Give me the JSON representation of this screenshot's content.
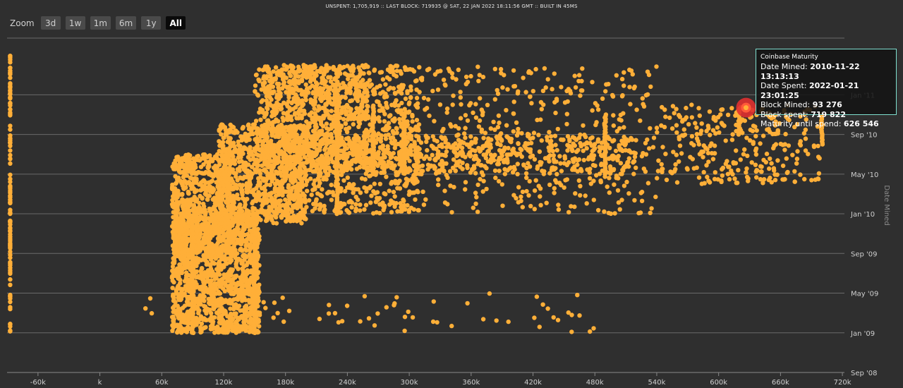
{
  "status_bar": "UNSPENT: 1,705,919 :: LAST BLOCK: 719935 @ SAT, 22 JAN 2022 18:11:56 GMT :: BUILT IN 45MS",
  "zoom": {
    "label": "Zoom",
    "buttons": [
      "3d",
      "1w",
      "1m",
      "6m",
      "1y",
      "All"
    ],
    "active": "All"
  },
  "tooltip": {
    "title": "Coinbase Maturity",
    "rows": [
      {
        "label": "Date Mined:",
        "value": "2010-11-22 13:13:13"
      },
      {
        "label": "Date Spent:",
        "value": "2022-01-21 23:01:25"
      },
      {
        "label": "Block Mined:",
        "value": "93 276"
      },
      {
        "label": "Block spent:",
        "value": "719 822"
      },
      {
        "label": "Maturity until spend:",
        "value": "626 546"
      }
    ]
  },
  "chart_data": {
    "type": "scatter",
    "ylabel": "Date Mined",
    "xlabel": "",
    "x_ticks": [
      "-60k",
      "k",
      "60k",
      "120k",
      "180k",
      "240k",
      "300k",
      "360k",
      "420k",
      "480k",
      "540k",
      "600k",
      "660k",
      "720k"
    ],
    "y_ticks": [
      "Sep '08",
      "Jan '09",
      "May '09",
      "Sep '09",
      "Jan '10",
      "May '10",
      "Sep '10",
      "Jan '11"
    ],
    "xlim": [
      -90000,
      722000
    ],
    "ylim": [
      "2008-09",
      "2011-07"
    ],
    "grid": true,
    "point_color": "#ffaf38",
    "highlight_color": "#e03030",
    "highlight_point": {
      "x": 626546,
      "y": "2010-11-22"
    },
    "clusters": [
      {
        "x_from": -87000,
        "x_to": -87000,
        "y_from": "2009-01",
        "y_to": "2011-05",
        "n": 120
      },
      {
        "x_from": 70000,
        "x_to": 155000,
        "y_from": "2009-01",
        "y_to": "2010-01",
        "n": 1400
      },
      {
        "x_from": 70000,
        "x_to": 130000,
        "y_from": "2009-09",
        "y_to": "2010-07",
        "n": 700
      },
      {
        "x_from": 115000,
        "x_to": 200000,
        "y_from": "2009-12",
        "y_to": "2010-10",
        "n": 800
      },
      {
        "x_from": 150000,
        "x_to": 310000,
        "y_from": "2010-01",
        "y_to": "2011-04",
        "n": 1000
      },
      {
        "x_from": 160000,
        "x_to": 260000,
        "y_from": "2010-06",
        "y_to": "2011-04",
        "n": 600
      },
      {
        "x_from": 200000,
        "x_to": 520000,
        "y_from": "2010-05",
        "y_to": "2010-09",
        "n": 600
      },
      {
        "x_from": 280000,
        "x_to": 540000,
        "y_from": "2010-01",
        "y_to": "2011-04",
        "n": 450
      },
      {
        "x_from": 540000,
        "x_to": 700000,
        "y_from": "2010-04",
        "y_to": "2010-12",
        "n": 300
      },
      {
        "x_from": 40000,
        "x_to": 480000,
        "y_from": "2009-01",
        "y_to": "2009-05",
        "n": 60
      }
    ],
    "vertical_streaks": [
      {
        "x": 150000,
        "y_from": "2009-01",
        "y_to": "2009-12"
      },
      {
        "x": 90000,
        "y_from": "2009-01",
        "y_to": "2009-12"
      },
      {
        "x": 230000,
        "y_from": "2010-01",
        "y_to": "2010-12"
      },
      {
        "x": 265000,
        "y_from": "2010-05",
        "y_to": "2010-12"
      },
      {
        "x": 295000,
        "y_from": "2010-06",
        "y_to": "2010-11"
      },
      {
        "x": 490000,
        "y_from": "2010-05",
        "y_to": "2010-11"
      },
      {
        "x": 620000,
        "y_from": "2010-09",
        "y_to": "2010-11"
      },
      {
        "x": 700000,
        "y_from": "2010-08",
        "y_to": "2010-11"
      }
    ]
  }
}
